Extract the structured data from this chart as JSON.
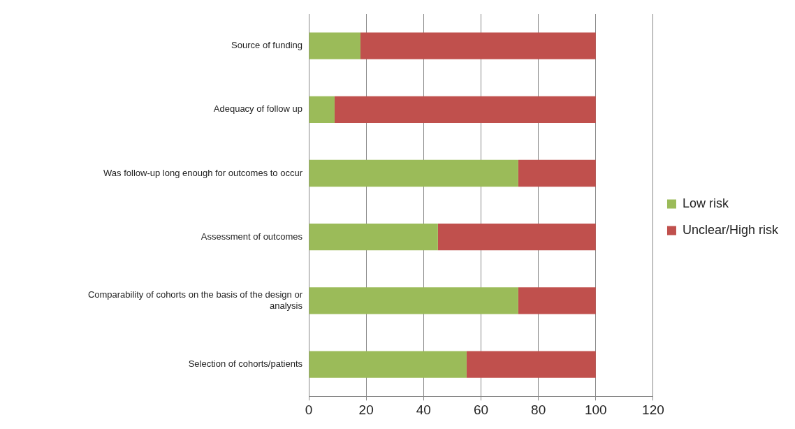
{
  "chart_data": {
    "type": "bar",
    "orientation": "horizontal",
    "stacked": true,
    "categories": [
      "Source of funding",
      "Adequacy of follow up",
      "Was follow-up long enough for outcomes to occur",
      "Assessment of outcomes",
      "Comparability of cohorts on the basis of the design or analysis",
      "Selection of cohorts/patients"
    ],
    "series": [
      {
        "name": "Low risk",
        "color": "#9bbb59",
        "values": [
          18,
          9,
          73,
          45,
          73,
          55
        ]
      },
      {
        "name": "Unclear/High risk",
        "color": "#c0504d",
        "values": [
          82,
          91,
          27,
          55,
          27,
          45
        ]
      }
    ],
    "xlim": [
      0,
      120
    ],
    "xticks": [
      0,
      20,
      40,
      60,
      80,
      100,
      120
    ],
    "grid": "x",
    "legend": "right"
  }
}
